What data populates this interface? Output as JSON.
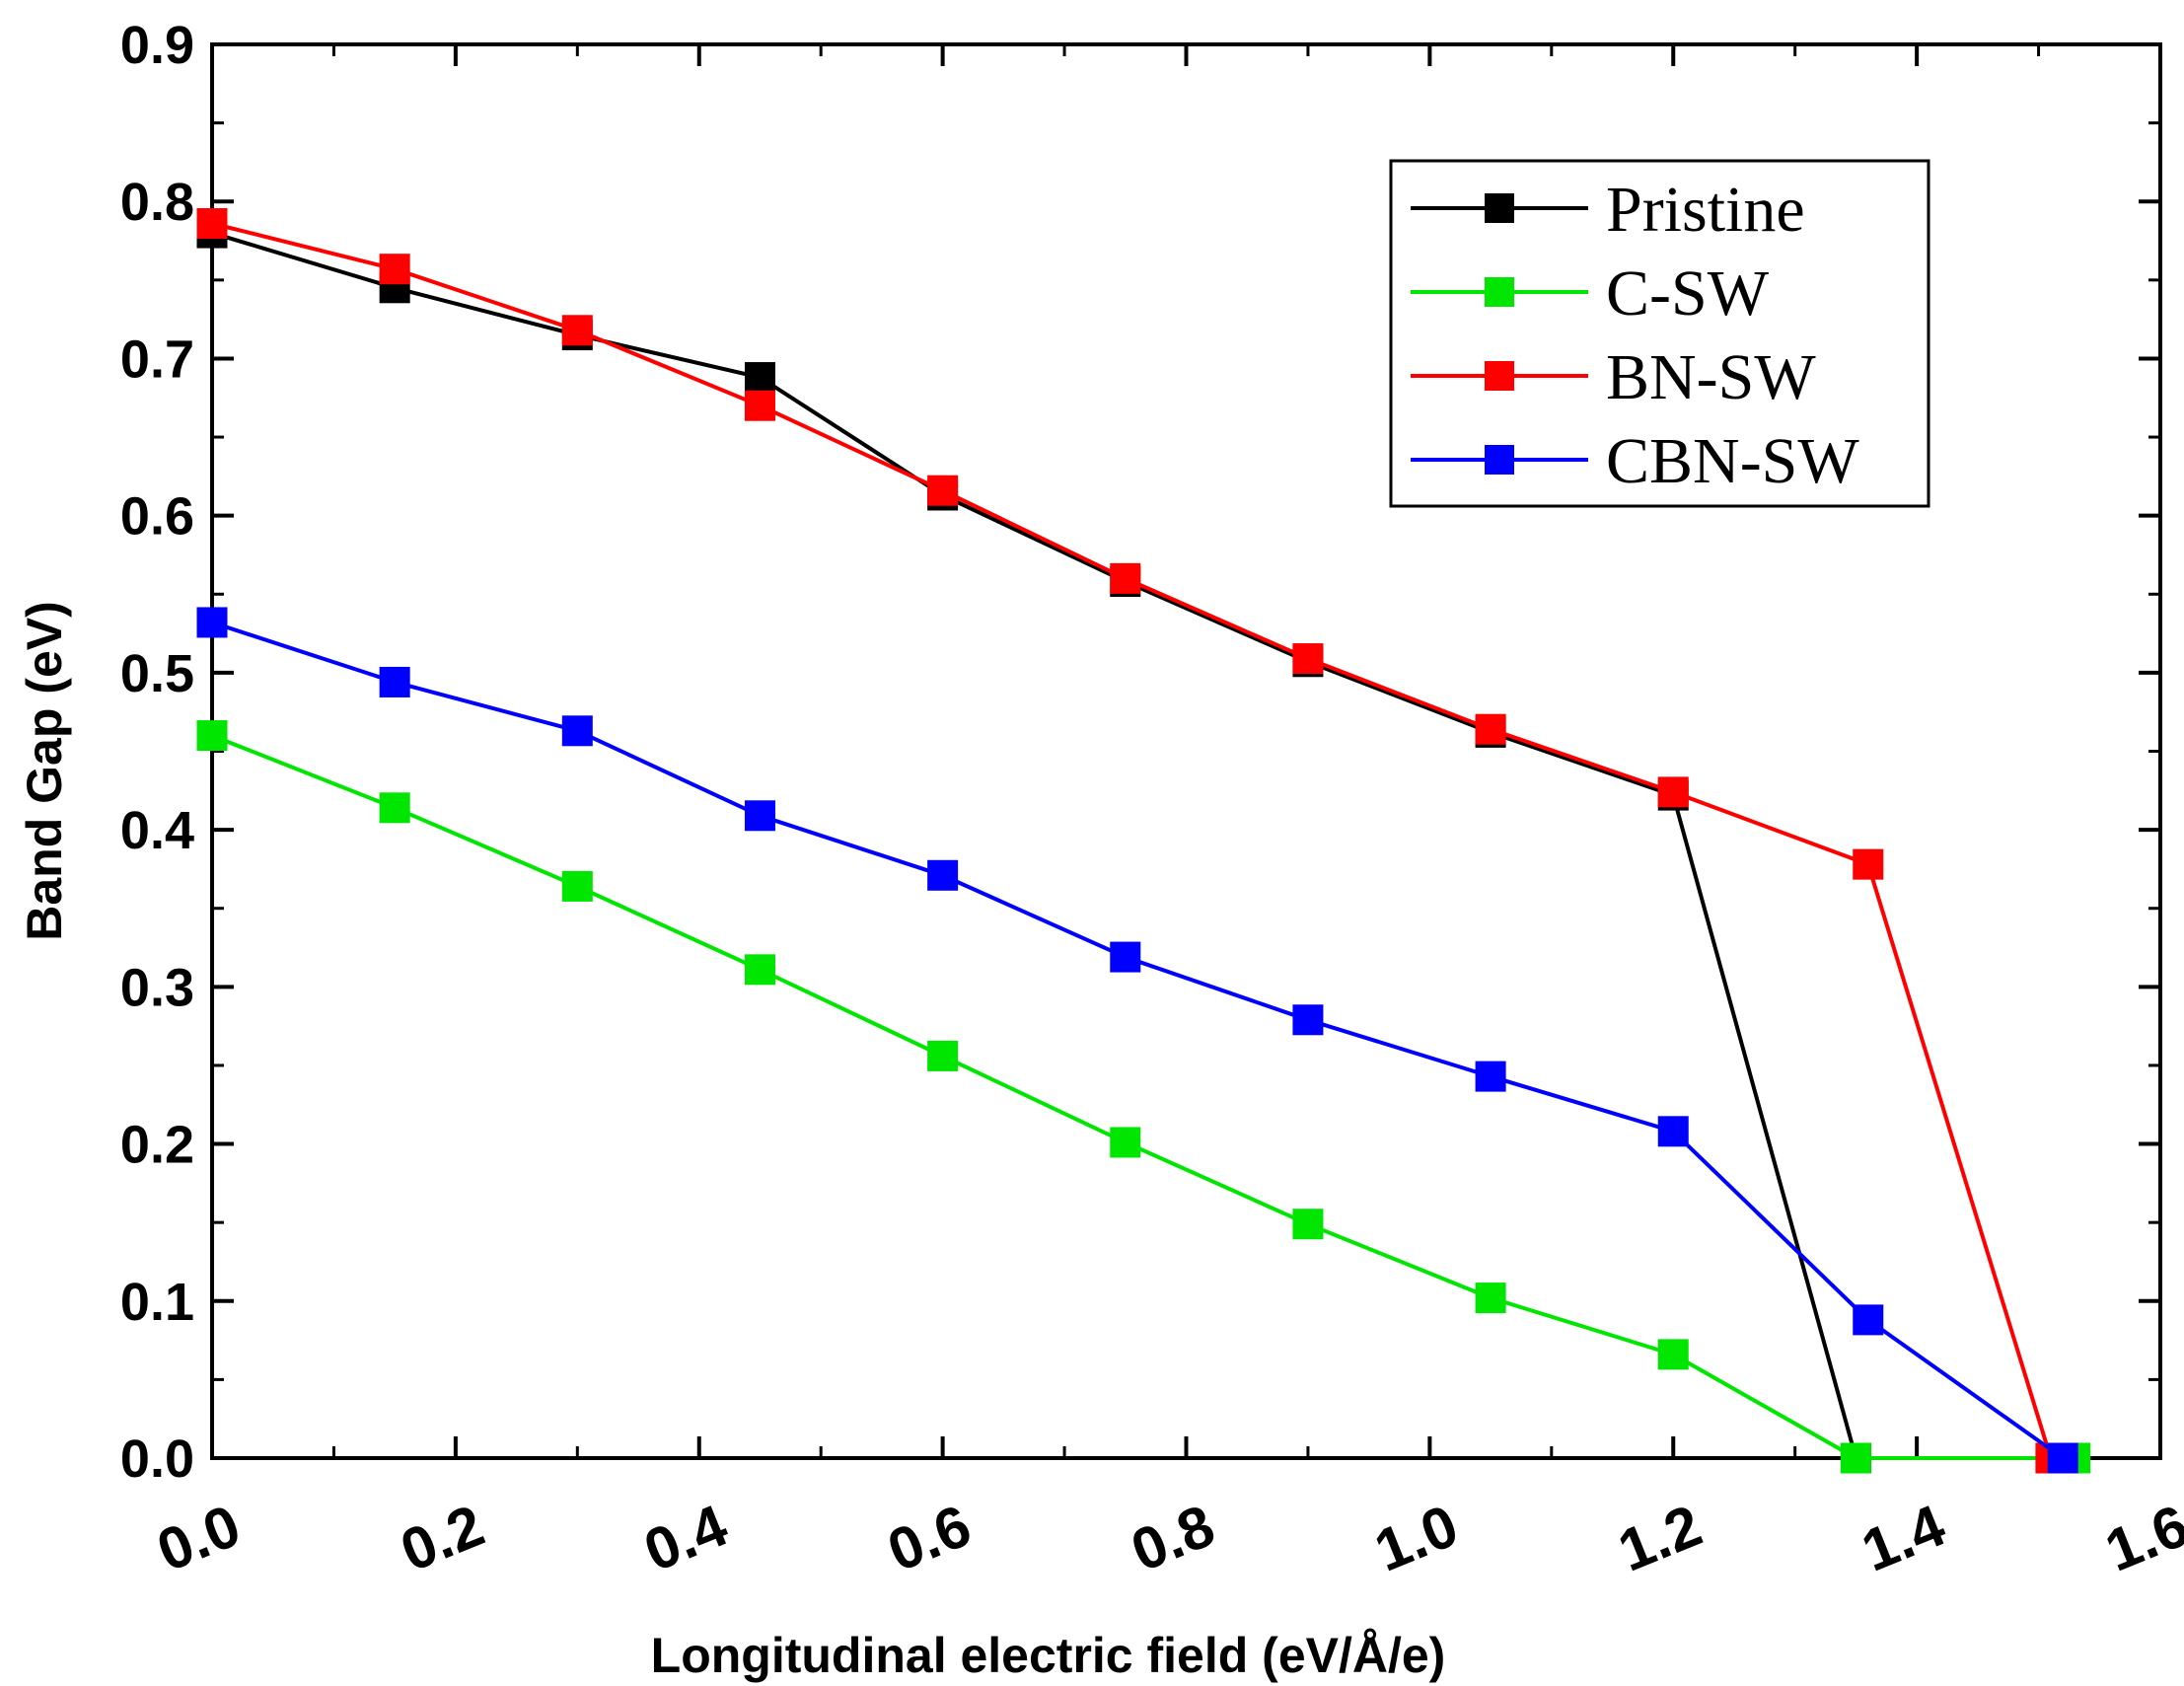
{
  "chart_data": {
    "type": "line",
    "title": "",
    "xlabel": "Longitudinal electric field (eV/Å/e)",
    "ylabel": "Band Gap (eV)",
    "xlim": [
      0.0,
      1.6
    ],
    "ylim": [
      0.0,
      0.9
    ],
    "xticks": [
      "0.0",
      "0.2",
      "0.4",
      "0.6",
      "0.8",
      "1.0",
      "1.2",
      "1.4",
      "1.6"
    ],
    "yticks": [
      "0.0",
      "0.1",
      "0.2",
      "0.3",
      "0.4",
      "0.5",
      "0.6",
      "0.7",
      "0.8",
      "0.9"
    ],
    "grid": false,
    "legend_position": "top-right",
    "series": [
      {
        "name": "Pristine",
        "color": "#000000",
        "x": [
          0.0,
          0.15,
          0.3,
          0.45,
          0.6,
          0.75,
          0.9,
          1.05,
          1.2,
          1.35
        ],
        "y": [
          0.78,
          0.745,
          0.715,
          0.688,
          0.613,
          0.558,
          0.507,
          0.462,
          0.422,
          0.0
        ]
      },
      {
        "name": "C-SW",
        "color": "#00e600",
        "x": [
          0.0,
          0.15,
          0.3,
          0.45,
          0.6,
          0.75,
          0.9,
          1.05,
          1.2,
          1.35,
          1.53
        ],
        "y": [
          0.46,
          0.414,
          0.364,
          0.311,
          0.256,
          0.201,
          0.149,
          0.102,
          0.066,
          0.0,
          0.0
        ]
      },
      {
        "name": "BN-SW",
        "color": "#ff0000",
        "x": [
          0.0,
          0.15,
          0.3,
          0.45,
          0.6,
          0.75,
          0.9,
          1.05,
          1.2,
          1.36,
          1.51
        ],
        "y": [
          0.786,
          0.757,
          0.718,
          0.67,
          0.616,
          0.56,
          0.509,
          0.464,
          0.424,
          0.378,
          0.0
        ]
      },
      {
        "name": "CBN-SW",
        "color": "#0000ff",
        "x": [
          0.0,
          0.15,
          0.3,
          0.45,
          0.6,
          0.75,
          0.9,
          1.05,
          1.2,
          1.36,
          1.52
        ],
        "y": [
          0.532,
          0.494,
          0.463,
          0.409,
          0.371,
          0.319,
          0.279,
          0.243,
          0.208,
          0.088,
          0.0
        ]
      }
    ]
  }
}
